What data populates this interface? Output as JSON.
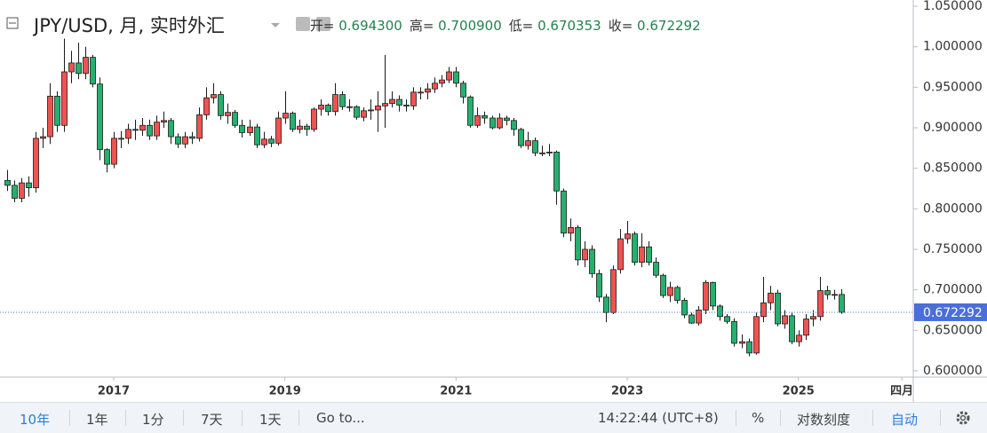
{
  "header": {
    "symbol": "JPY/USD, 月, 实时外汇",
    "ohlc": [
      {
        "label": "开=",
        "value": "0.694300"
      },
      {
        "label": "高=",
        "value": "0.700900"
      },
      {
        "label": "低=",
        "value": "0.670353"
      },
      {
        "label": "收=",
        "value": "0.672292"
      }
    ]
  },
  "chart_data": {
    "type": "candlestick",
    "open": [
      0.835,
      0.829,
      0.813,
      0.832,
      0.826,
      0.887,
      0.889,
      0.939,
      0.903,
      0.969,
      0.98,
      0.967,
      0.987,
      0.954,
      0.873,
      0.855,
      0.887,
      0.887,
      0.898,
      0.897,
      0.903,
      0.89,
      0.907,
      0.909,
      0.889,
      0.88,
      0.889,
      0.887,
      0.916,
      0.937,
      0.941,
      0.915,
      0.919,
      0.903,
      0.894,
      0.901,
      0.879,
      0.886,
      0.881,
      0.912,
      0.918,
      0.898,
      0.902,
      0.898,
      0.923,
      0.928,
      0.92,
      0.941,
      0.926,
      0.926,
      0.913,
      0.921,
      0.922,
      0.927,
      0.93,
      0.935,
      0.928,
      0.927,
      0.944,
      0.944,
      0.948,
      0.955,
      0.959,
      0.969,
      0.955,
      0.938,
      0.903,
      0.915,
      0.912,
      0.9,
      0.912,
      0.909,
      0.898,
      0.878,
      0.884,
      0.869,
      0.869,
      0.87,
      0.822,
      0.77,
      0.777,
      0.737,
      0.75,
      0.72,
      0.691,
      0.672,
      0.725,
      0.763,
      0.769,
      0.734,
      0.753,
      0.734,
      0.718,
      0.693,
      0.703,
      0.687,
      0.669,
      0.659,
      0.675,
      0.709,
      0.68,
      0.667,
      0.661,
      0.634,
      0.636,
      0.622,
      0.667,
      0.684,
      0.696,
      0.658,
      0.668,
      0.636,
      0.644,
      0.664,
      0.667,
      0.699,
      0.694,
      0.6943
    ],
    "high": [
      0.848,
      0.835,
      0.838,
      0.84,
      0.895,
      0.9,
      0.955,
      0.945,
      1.01,
      0.995,
      1.005,
      1.0,
      0.99,
      0.962,
      0.875,
      0.895,
      0.896,
      0.905,
      0.91,
      0.912,
      0.91,
      0.915,
      0.92,
      0.912,
      0.893,
      0.895,
      0.895,
      0.925,
      0.95,
      0.955,
      0.945,
      0.93,
      0.922,
      0.91,
      0.91,
      0.905,
      0.895,
      0.89,
      0.92,
      0.945,
      0.92,
      0.91,
      0.905,
      0.925,
      0.935,
      0.93,
      0.955,
      0.945,
      0.935,
      0.928,
      0.925,
      0.935,
      0.945,
      0.99,
      0.945,
      0.94,
      0.935,
      0.95,
      0.95,
      0.955,
      0.962,
      0.965,
      0.975,
      0.975,
      0.958,
      0.94,
      0.925,
      0.92,
      0.915,
      0.918,
      0.915,
      0.912,
      0.9,
      0.895,
      0.888,
      0.878,
      0.88,
      0.872,
      0.825,
      0.788,
      0.78,
      0.76,
      0.755,
      0.725,
      0.695,
      0.73,
      0.775,
      0.785,
      0.772,
      0.77,
      0.76,
      0.74,
      0.72,
      0.71,
      0.705,
      0.69,
      0.672,
      0.68,
      0.712,
      0.71,
      0.682,
      0.67,
      0.665,
      0.645,
      0.64,
      0.672,
      0.716,
      0.705,
      0.7,
      0.675,
      0.672,
      0.65,
      0.67,
      0.675,
      0.716,
      0.705,
      0.7,
      0.7009
    ],
    "low": [
      0.822,
      0.808,
      0.808,
      0.815,
      0.82,
      0.875,
      0.88,
      0.895,
      0.895,
      0.955,
      0.96,
      0.96,
      0.95,
      0.86,
      0.845,
      0.85,
      0.875,
      0.88,
      0.885,
      0.89,
      0.885,
      0.885,
      0.9,
      0.88,
      0.875,
      0.875,
      0.88,
      0.883,
      0.91,
      0.93,
      0.91,
      0.905,
      0.9,
      0.888,
      0.89,
      0.875,
      0.875,
      0.876,
      0.878,
      0.905,
      0.895,
      0.893,
      0.89,
      0.895,
      0.915,
      0.915,
      0.915,
      0.922,
      0.92,
      0.91,
      0.908,
      0.91,
      0.895,
      0.9,
      0.925,
      0.92,
      0.92,
      0.922,
      0.935,
      0.935,
      0.943,
      0.95,
      0.955,
      0.95,
      0.93,
      0.9,
      0.9,
      0.905,
      0.898,
      0.898,
      0.903,
      0.89,
      0.875,
      0.873,
      0.865,
      0.865,
      0.865,
      0.805,
      0.765,
      0.76,
      0.73,
      0.728,
      0.715,
      0.685,
      0.66,
      0.67,
      0.72,
      0.757,
      0.73,
      0.728,
      0.73,
      0.715,
      0.69,
      0.685,
      0.683,
      0.665,
      0.658,
      0.656,
      0.67,
      0.675,
      0.662,
      0.658,
      0.63,
      0.628,
      0.618,
      0.62,
      0.66,
      0.675,
      0.655,
      0.652,
      0.633,
      0.63,
      0.638,
      0.655,
      0.662,
      0.688,
      0.688,
      0.670353
    ],
    "close": [
      0.829,
      0.813,
      0.832,
      0.826,
      0.887,
      0.889,
      0.939,
      0.903,
      0.969,
      0.98,
      0.967,
      0.987,
      0.954,
      0.873,
      0.855,
      0.887,
      0.887,
      0.898,
      0.897,
      0.903,
      0.89,
      0.907,
      0.909,
      0.889,
      0.88,
      0.889,
      0.887,
      0.916,
      0.937,
      0.941,
      0.915,
      0.919,
      0.903,
      0.894,
      0.901,
      0.879,
      0.886,
      0.881,
      0.912,
      0.918,
      0.898,
      0.902,
      0.898,
      0.923,
      0.928,
      0.92,
      0.941,
      0.926,
      0.926,
      0.913,
      0.921,
      0.922,
      0.927,
      0.93,
      0.935,
      0.928,
      0.927,
      0.944,
      0.944,
      0.948,
      0.955,
      0.959,
      0.969,
      0.955,
      0.938,
      0.903,
      0.915,
      0.912,
      0.9,
      0.912,
      0.909,
      0.898,
      0.878,
      0.884,
      0.869,
      0.869,
      0.87,
      0.822,
      0.77,
      0.777,
      0.737,
      0.75,
      0.72,
      0.691,
      0.672,
      0.725,
      0.763,
      0.769,
      0.734,
      0.753,
      0.734,
      0.718,
      0.693,
      0.703,
      0.687,
      0.669,
      0.659,
      0.675,
      0.709,
      0.68,
      0.667,
      0.661,
      0.634,
      0.636,
      0.622,
      0.667,
      0.684,
      0.696,
      0.658,
      0.668,
      0.636,
      0.644,
      0.664,
      0.667,
      0.699,
      0.694,
      0.6943,
      0.672292
    ],
    "up_color": "#ef5350",
    "down_color": "#26b06e",
    "outline_color": "#1b1b1b",
    "xlim": [
      -0.94,
      127.1
    ],
    "xticks": [
      {
        "value": 15,
        "label": "2017"
      },
      {
        "value": 39,
        "label": "2019"
      },
      {
        "value": 63,
        "label": "2021"
      },
      {
        "value": 87,
        "label": "2023"
      },
      {
        "value": 111,
        "label": "2025"
      },
      {
        "value": 125.5,
        "label": "四月"
      }
    ],
    "ylim": [
      0.5923,
      1.0577
    ],
    "yticks": [
      {
        "value": 0.6,
        "label": "0.600000"
      },
      {
        "value": 0.65,
        "label": "0.650000"
      },
      {
        "value": 0.7,
        "label": "0.700000"
      },
      {
        "value": 0.75,
        "label": "0.750000"
      },
      {
        "value": 0.8,
        "label": "0.800000"
      },
      {
        "value": 0.85,
        "label": "0.850000"
      },
      {
        "value": 0.9,
        "label": "0.900000"
      },
      {
        "value": 0.95,
        "label": "0.950000"
      },
      {
        "value": 1.0,
        "label": "1.000000"
      },
      {
        "value": 1.05,
        "label": "1.050000"
      }
    ],
    "last_price": {
      "value": 0.672292,
      "label": "0.672292"
    },
    "last_price_color": "#4a6fd8",
    "grid": false
  },
  "toolbar": {
    "left": [
      "10年",
      "1年",
      "1分",
      "7天",
      "1天",
      "Go to..."
    ],
    "time": "14:22:44 (UTC+8)",
    "right": [
      "%",
      "对数刻度",
      "自动"
    ]
  }
}
